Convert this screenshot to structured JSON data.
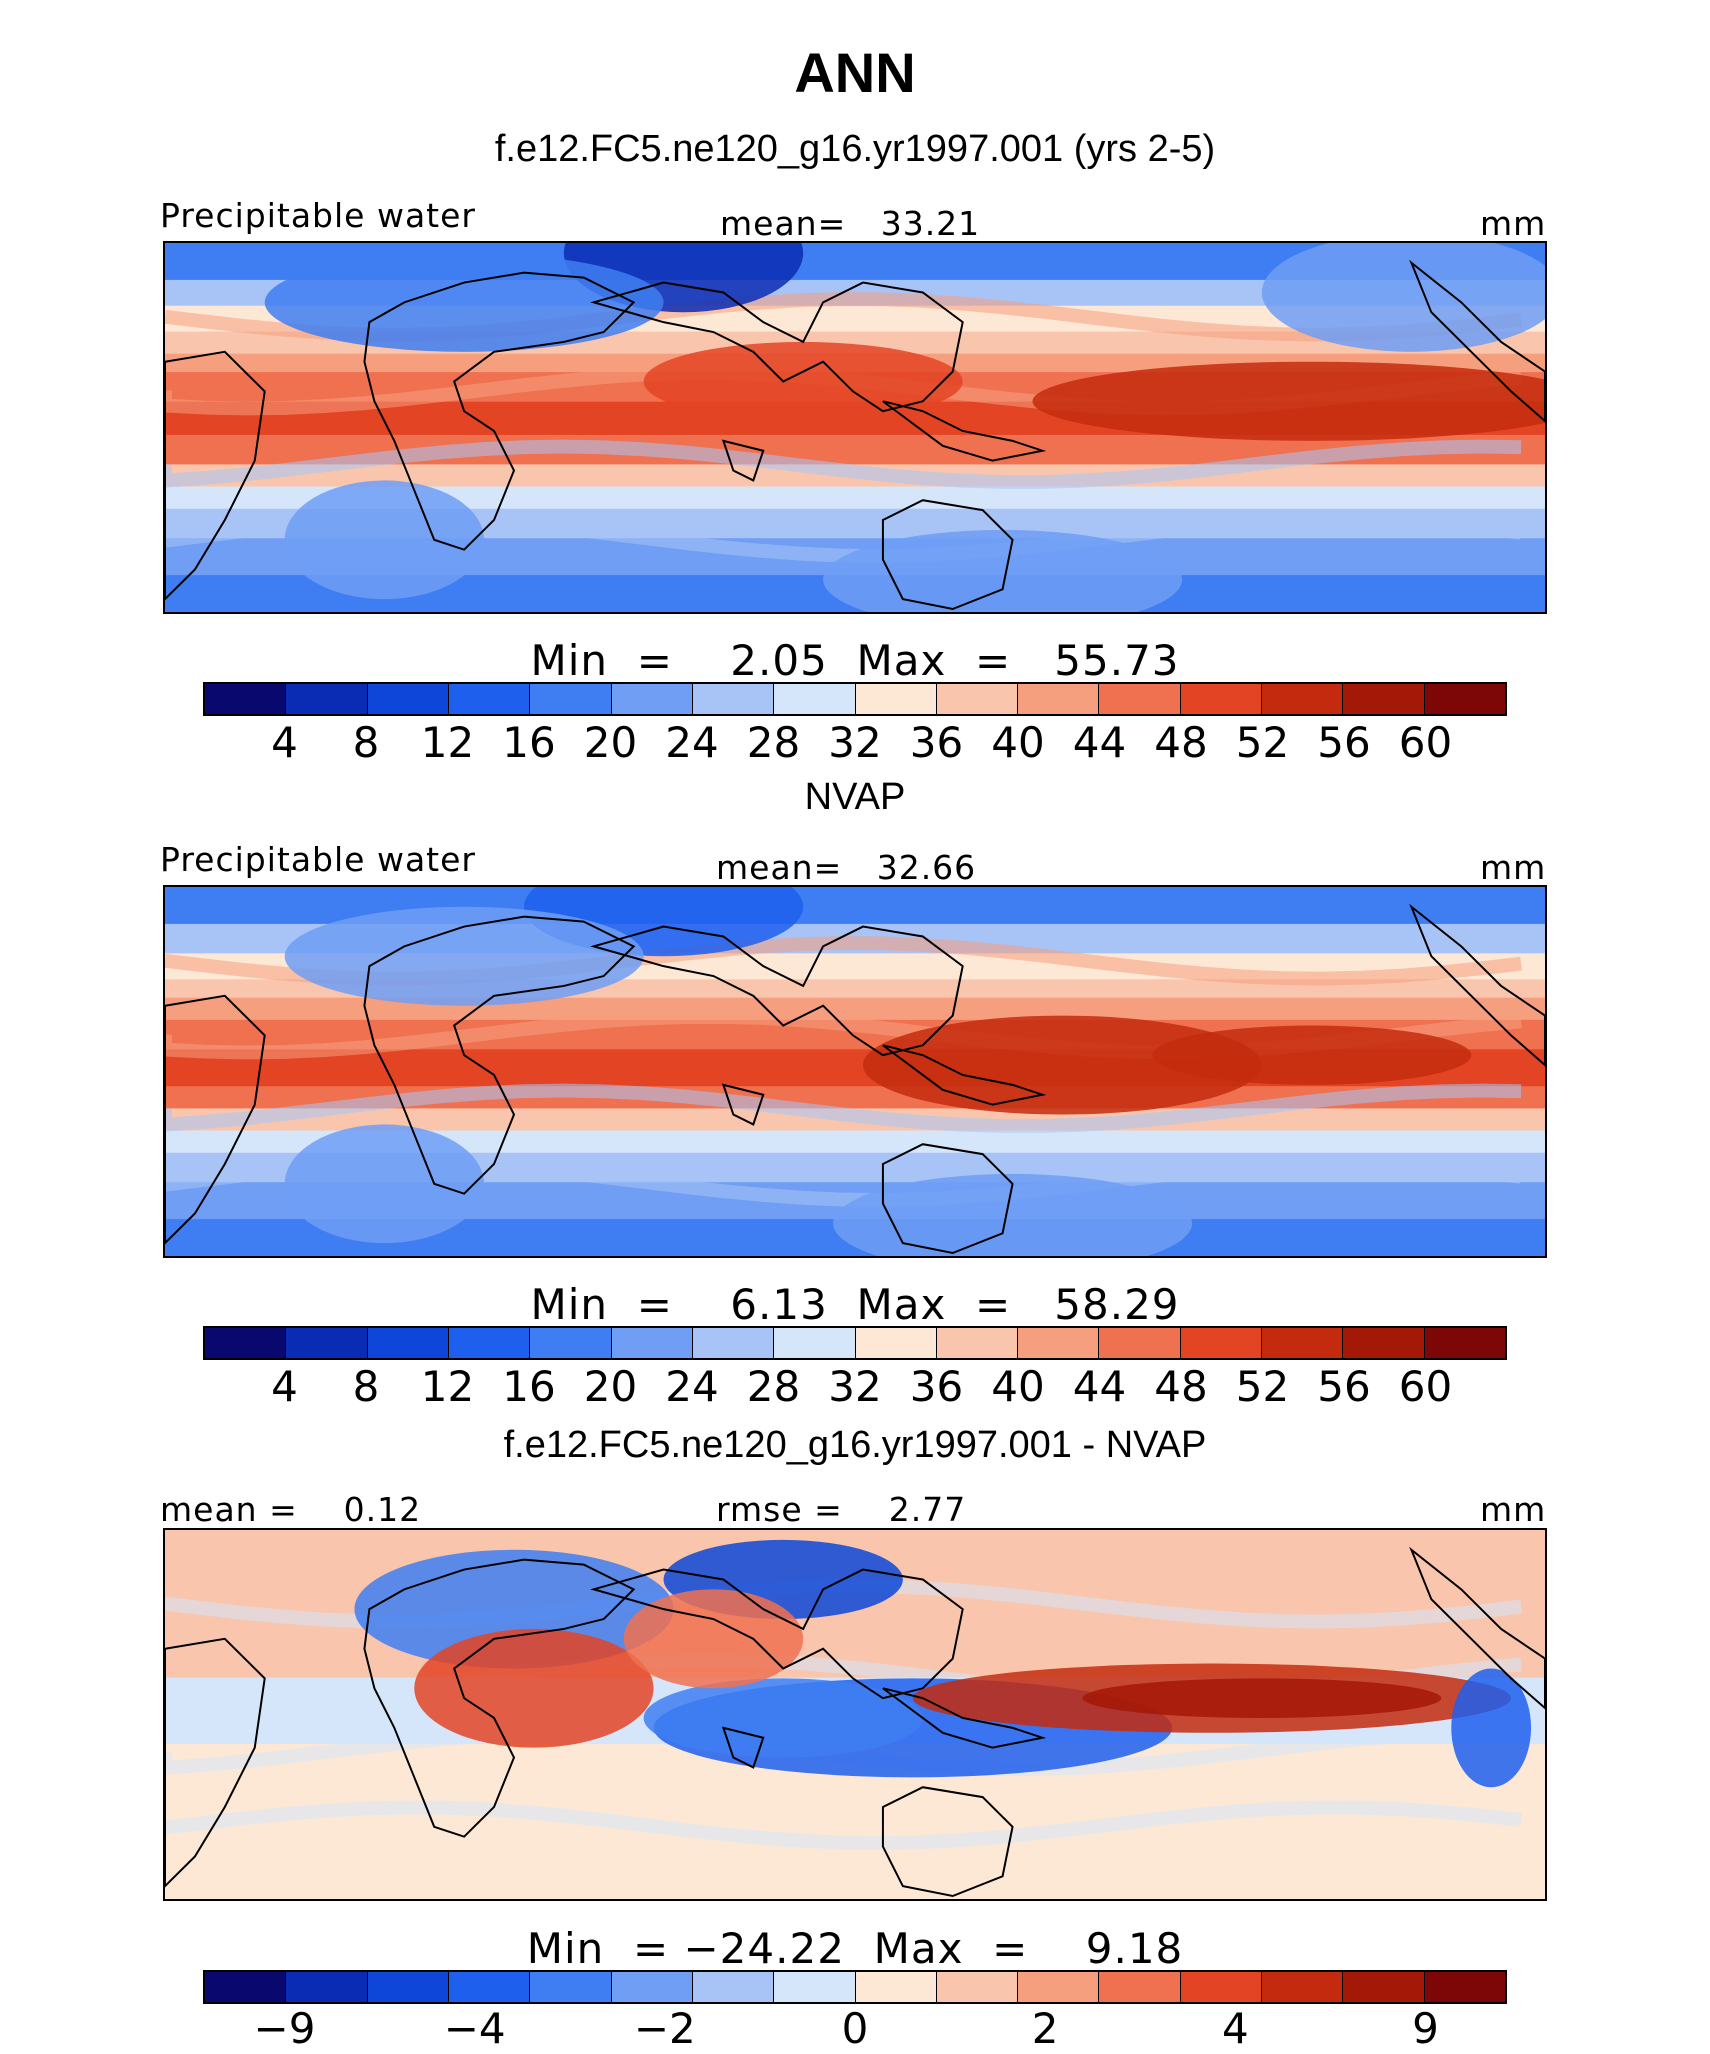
{
  "title": "ANN",
  "colors": [
    "#08086e",
    "#0a2cb4",
    "#0d46d8",
    "#1f5fee",
    "#3f7ef2",
    "#6f9ef4",
    "#a8c4f6",
    "#d6e6fa",
    "#fde8d6",
    "#f9c6ad",
    "#f59f7e",
    "#f07150",
    "#e34424",
    "#c42b0e",
    "#a31807",
    "#7d0606"
  ],
  "chart_data": [
    {
      "type": "heatmap",
      "panel_title": "f.e12.FC5.ne120_g16.yr1997.001 (yrs 2-5)",
      "left_label": "Precipitable water",
      "center_label": "mean=   33.21",
      "units": "mm",
      "minmax_label": "Min  =    2.05  Max  =   55.73",
      "min": 2.05,
      "max": 55.73,
      "mean": 33.21,
      "colorbar_levels": [
        "4",
        "8",
        "12",
        "16",
        "20",
        "24",
        "28",
        "32",
        "36",
        "40",
        "44",
        "48",
        "52",
        "56",
        "60"
      ]
    },
    {
      "type": "heatmap",
      "panel_title": "NVAP",
      "left_label": "Precipitable water",
      "center_label": "mean=   32.66",
      "units": "mm",
      "minmax_label": "Min  =    6.13  Max  =   58.29",
      "min": 6.13,
      "max": 58.29,
      "mean": 32.66,
      "colorbar_levels": [
        "4",
        "8",
        "12",
        "16",
        "20",
        "24",
        "28",
        "32",
        "36",
        "40",
        "44",
        "48",
        "52",
        "56",
        "60"
      ]
    },
    {
      "type": "heatmap",
      "panel_title": "f.e12.FC5.ne120_g16.yr1997.001 - NVAP",
      "left_label": "mean =    0.12",
      "center_label": "rmse =    2.77",
      "units": "mm",
      "minmax_label": "Min  = −24.22  Max  =    9.18",
      "min": -24.22,
      "max": 9.18,
      "mean": 0.12,
      "rmse": 2.77,
      "colorbar_levels": [
        "−9",
        "",
        "−4",
        "",
        "−2",
        "",
        "0",
        "",
        "2",
        "",
        "4",
        "",
        "9"
      ]
    }
  ]
}
